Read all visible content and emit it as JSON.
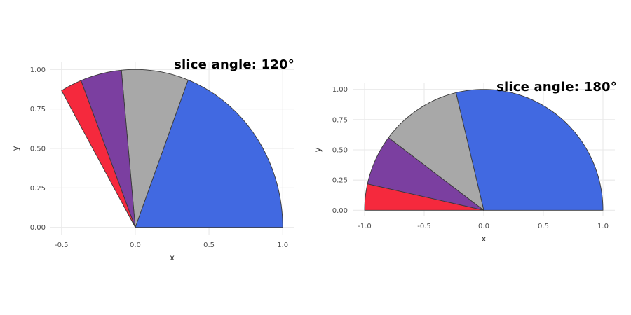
{
  "page": {
    "background": "#FFFFFF"
  },
  "chart_data": [
    {
      "type": "pie",
      "title": "slice angle: 120°",
      "xlabel": "x",
      "ylabel": "y",
      "start_angle_deg": 0,
      "total_angle_deg": 120,
      "origin": [
        0,
        0
      ],
      "radius": 1,
      "slices": [
        {
          "name": "blue",
          "color": "#4169E1",
          "fraction": 0.575
        },
        {
          "name": "gray",
          "color": "#A8A8A8",
          "fraction": 0.22
        },
        {
          "name": "purple",
          "color": "#7B3FA0",
          "fraction": 0.135
        },
        {
          "name": "red",
          "color": "#F5293D",
          "fraction": 0.07
        }
      ],
      "x_ticks": {
        "values": [
          -0.5,
          0,
          0.5,
          1
        ],
        "labels": [
          "-0.5",
          "0.0",
          "0.5",
          "1.0"
        ]
      },
      "y_ticks": {
        "values": [
          0,
          0.25,
          0.5,
          0.75,
          1
        ],
        "labels": [
          "0.00",
          "0.25",
          "0.50",
          "0.75",
          "1.00"
        ]
      },
      "xlim": [
        -0.575,
        1.075
      ],
      "ylim": [
        -0.05,
        1.05
      ],
      "grid": true,
      "grid_color": "#E9E9E9",
      "outline_color": "#3A3A3A",
      "tick_label_color": "#4D4D4D",
      "axis_label_color": "#333333",
      "legend": "none"
    },
    {
      "type": "pie",
      "title": "slice angle: 180°",
      "xlabel": "x",
      "ylabel": "y",
      "start_angle_deg": 0,
      "total_angle_deg": 180,
      "origin": [
        0,
        0
      ],
      "radius": 1,
      "slices": [
        {
          "name": "blue",
          "color": "#4169E1",
          "fraction": 0.575
        },
        {
          "name": "gray",
          "color": "#A8A8A8",
          "fraction": 0.22
        },
        {
          "name": "purple",
          "color": "#7B3FA0",
          "fraction": 0.135
        },
        {
          "name": "red",
          "color": "#F5293D",
          "fraction": 0.07
        }
      ],
      "x_ticks": {
        "values": [
          -1,
          -0.5,
          0,
          0.5,
          1
        ],
        "labels": [
          "-1.0",
          "-0.5",
          "0.0",
          "0.5",
          "1.0"
        ]
      },
      "y_ticks": {
        "values": [
          0,
          0.25,
          0.5,
          0.75,
          1
        ],
        "labels": [
          "0.00",
          "0.25",
          "0.50",
          "0.75",
          "1.00"
        ]
      },
      "xlim": [
        -1.1,
        1.1
      ],
      "ylim": [
        -0.05,
        1.05
      ],
      "grid": true,
      "grid_color": "#E9E9E9",
      "outline_color": "#3A3A3A",
      "tick_label_color": "#4D4D4D",
      "axis_label_color": "#333333",
      "legend": "none"
    }
  ]
}
